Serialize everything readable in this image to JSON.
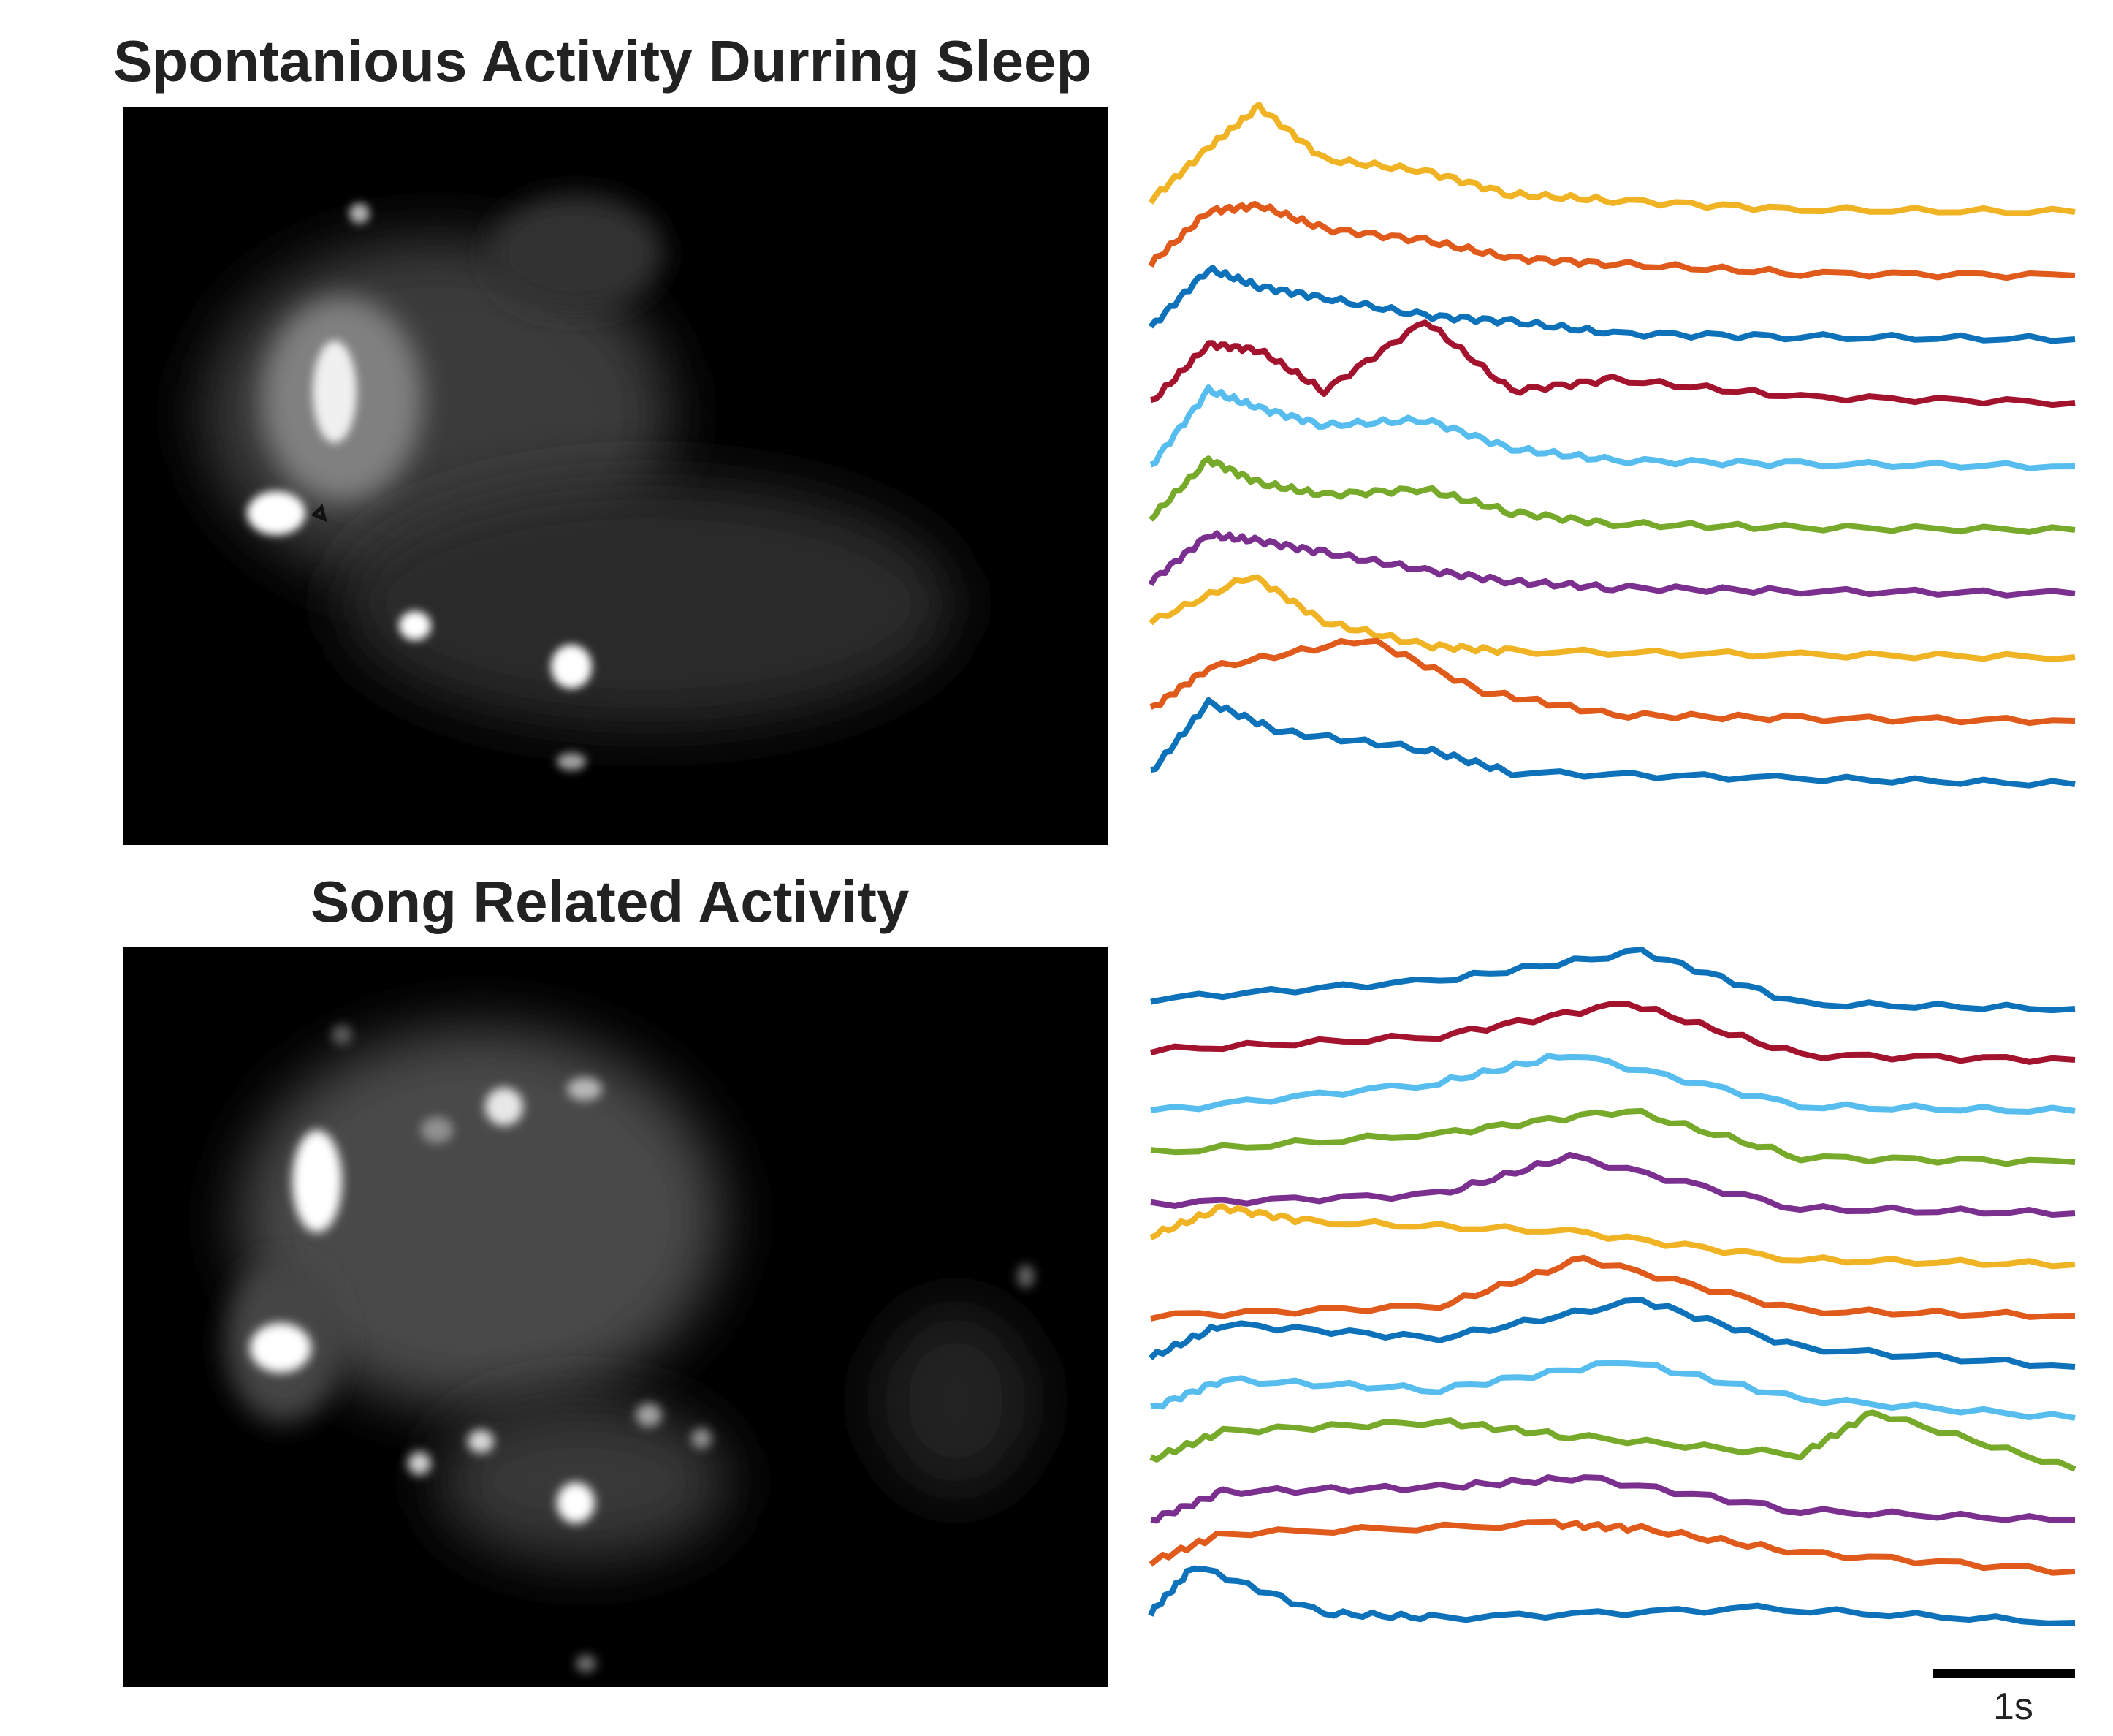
{
  "figure": {
    "title_top": "Spontanious Activity Durring Sleep",
    "title_bottom": "Song Related Activity",
    "scale_bar_label": "1s",
    "colors": [
      "#f0b323",
      "#e05a1c",
      "#0d72b9",
      "#a3132e",
      "#56bdee",
      "#77aa2b",
      "#7b2f8e"
    ]
  },
  "chart_data": [
    {
      "type": "line",
      "title": "Spontanious Activity Durring Sleep",
      "xlabel": "",
      "ylabel": "",
      "x_range_s": [
        0,
        6.4
      ],
      "series": [
        {
          "color": "#f0b323",
          "values": [
            [
              0,
              0.1
            ],
            [
              0.4,
              0.55
            ],
            [
              0.75,
              0.9
            ],
            [
              1.2,
              0.45
            ],
            [
              1.9,
              0.35
            ],
            [
              2.5,
              0.15
            ],
            [
              3.2,
              0.1
            ],
            [
              4.5,
              0.02
            ],
            [
              6.4,
              0
            ]
          ]
        },
        {
          "color": "#e05a1c",
          "values": [
            [
              0,
              0.1
            ],
            [
              0.4,
              0.55
            ],
            [
              0.75,
              0.6
            ],
            [
              1.2,
              0.4
            ],
            [
              1.9,
              0.3
            ],
            [
              2.5,
              0.15
            ],
            [
              3.2,
              0.1
            ],
            [
              4.5,
              0.02
            ],
            [
              6.4,
              0
            ]
          ]
        },
        {
          "color": "#0d72b9",
          "values": [
            [
              0,
              0.1
            ],
            [
              0.4,
              0.6
            ],
            [
              0.75,
              0.45
            ],
            [
              1.2,
              0.35
            ],
            [
              1.9,
              0.2
            ],
            [
              2.5,
              0.15
            ],
            [
              3.2,
              0.05
            ],
            [
              4.5,
              0.02
            ],
            [
              6.4,
              0
            ]
          ]
        },
        {
          "color": "#a3132e",
          "values": [
            [
              0,
              0
            ],
            [
              0.4,
              0.5
            ],
            [
              0.75,
              0.45
            ],
            [
              1.2,
              0.1
            ],
            [
              1.9,
              0.7
            ],
            [
              2.5,
              0.1
            ],
            [
              3.2,
              0.2
            ],
            [
              4.5,
              0.05
            ],
            [
              6.4,
              0
            ]
          ]
        },
        {
          "color": "#56bdee",
          "values": [
            [
              0,
              0
            ],
            [
              0.4,
              0.65
            ],
            [
              0.75,
              0.5
            ],
            [
              1.2,
              0.35
            ],
            [
              1.9,
              0.4
            ],
            [
              2.5,
              0.15
            ],
            [
              3.2,
              0.05
            ],
            [
              4.5,
              0.02
            ],
            [
              6.4,
              0
            ]
          ]
        },
        {
          "color": "#77aa2b",
          "values": [
            [
              0,
              0.1
            ],
            [
              0.4,
              0.6
            ],
            [
              0.75,
              0.4
            ],
            [
              1.2,
              0.3
            ],
            [
              1.9,
              0.35
            ],
            [
              2.5,
              0.15
            ],
            [
              3.2,
              0.05
            ],
            [
              4.5,
              0.02
            ],
            [
              6.4,
              0
            ]
          ]
        },
        {
          "color": "#7b2f8e",
          "values": [
            [
              0,
              0.1
            ],
            [
              0.4,
              0.5
            ],
            [
              0.75,
              0.45
            ],
            [
              1.2,
              0.35
            ],
            [
              1.9,
              0.2
            ],
            [
              2.5,
              0.1
            ],
            [
              3.2,
              0.05
            ],
            [
              4.5,
              0.02
            ],
            [
              6.4,
              0
            ]
          ]
        },
        {
          "color": "#f0b323",
          "values": [
            [
              0,
              0.3
            ],
            [
              0.7,
              0.7
            ],
            [
              1.2,
              0.3
            ],
            [
              1.9,
              0.1
            ],
            [
              2.5,
              0.05
            ],
            [
              4.5,
              0.02
            ],
            [
              6.4,
              0
            ]
          ]
        },
        {
          "color": "#e05a1c",
          "values": [
            [
              0,
              0.1
            ],
            [
              0.4,
              0.45
            ],
            [
              1.5,
              0.7
            ],
            [
              2.3,
              0.25
            ],
            [
              3.2,
              0.05
            ],
            [
              4.5,
              0.02
            ],
            [
              6.4,
              0
            ]
          ]
        },
        {
          "color": "#0d72b9",
          "values": [
            [
              0,
              0.1
            ],
            [
              0.4,
              0.7
            ],
            [
              0.9,
              0.45
            ],
            [
              1.9,
              0.3
            ],
            [
              2.5,
              0.1
            ],
            [
              4.5,
              0.05
            ],
            [
              6.4,
              0
            ]
          ]
        }
      ]
    },
    {
      "type": "line",
      "title": "Song Related Activity",
      "xlabel": "",
      "ylabel": "",
      "x_range_s": [
        0,
        6.4
      ],
      "series": [
        {
          "color": "#0d72b9",
          "values": [
            [
              0,
              0.1
            ],
            [
              2,
              0.3
            ],
            [
              3.4,
              0.6
            ],
            [
              4.5,
              0.05
            ],
            [
              6.4,
              0
            ]
          ]
        },
        {
          "color": "#a3132e",
          "values": [
            [
              0,
              0.1
            ],
            [
              2,
              0.25
            ],
            [
              3.3,
              0.6
            ],
            [
              4.5,
              0.05
            ],
            [
              6.4,
              0
            ]
          ]
        },
        {
          "color": "#56bdee",
          "values": [
            [
              0,
              0
            ],
            [
              2,
              0.3
            ],
            [
              2.9,
              0.6
            ],
            [
              4.5,
              0.05
            ],
            [
              6.4,
              0
            ]
          ]
        },
        {
          "color": "#77aa2b",
          "values": [
            [
              0,
              0.1
            ],
            [
              2,
              0.3
            ],
            [
              3.3,
              0.55
            ],
            [
              4.5,
              0.05
            ],
            [
              6.4,
              0
            ]
          ]
        },
        {
          "color": "#7b2f8e",
          "values": [
            [
              0,
              0.1
            ],
            [
              2,
              0.2
            ],
            [
              2.9,
              0.6
            ],
            [
              4.5,
              0.05
            ],
            [
              6.4,
              0
            ]
          ]
        },
        {
          "color": "#f0b323",
          "values": [
            [
              0,
              0.3
            ],
            [
              0.5,
              0.6
            ],
            [
              1.1,
              0.45
            ],
            [
              2.9,
              0.35
            ],
            [
              4.5,
              0.05
            ],
            [
              6.4,
              0
            ]
          ]
        },
        {
          "color": "#e05a1c",
          "values": [
            [
              0,
              0
            ],
            [
              2,
              0.1
            ],
            [
              3.0,
              0.6
            ],
            [
              4.5,
              0.05
            ],
            [
              6.4,
              0
            ]
          ]
        },
        {
          "color": "#0d72b9",
          "values": [
            [
              0,
              0.1
            ],
            [
              0.5,
              0.45
            ],
            [
              2,
              0.3
            ],
            [
              3.4,
              0.7
            ],
            [
              4.5,
              0.2
            ],
            [
              6.4,
              0
            ]
          ]
        },
        {
          "color": "#56bdee",
          "values": [
            [
              0,
              0.1
            ],
            [
              0.5,
              0.4
            ],
            [
              2,
              0.3
            ],
            [
              3.3,
              0.6
            ],
            [
              4.5,
              0.2
            ],
            [
              6.4,
              0
            ]
          ]
        },
        {
          "color": "#77aa2b",
          "values": [
            [
              0,
              0.1
            ],
            [
              0.5,
              0.4
            ],
            [
              2,
              0.5
            ],
            [
              2.9,
              0.35
            ],
            [
              4.5,
              0.15
            ],
            [
              5.0,
              0.6
            ],
            [
              6.4,
              0
            ]
          ]
        },
        {
          "color": "#7b2f8e",
          "values": [
            [
              0,
              0
            ],
            [
              0.5,
              0.3
            ],
            [
              2,
              0.35
            ],
            [
              3,
              0.45
            ],
            [
              4.5,
              0.1
            ],
            [
              6.4,
              0
            ]
          ]
        },
        {
          "color": "#e05a1c",
          "values": [
            [
              0,
              0.1
            ],
            [
              0.5,
              0.4
            ],
            [
              2.8,
              0.5
            ],
            [
              3.4,
              0.45
            ],
            [
              4.5,
              0.2
            ],
            [
              6.4,
              0
            ]
          ]
        },
        {
          "color": "#0d72b9",
          "values": [
            [
              0,
              0.1
            ],
            [
              0.3,
              0.6
            ],
            [
              1.2,
              0.1
            ],
            [
              2,
              0.05
            ],
            [
              4.2,
              0.15
            ],
            [
              6.4,
              0
            ]
          ]
        }
      ]
    }
  ]
}
